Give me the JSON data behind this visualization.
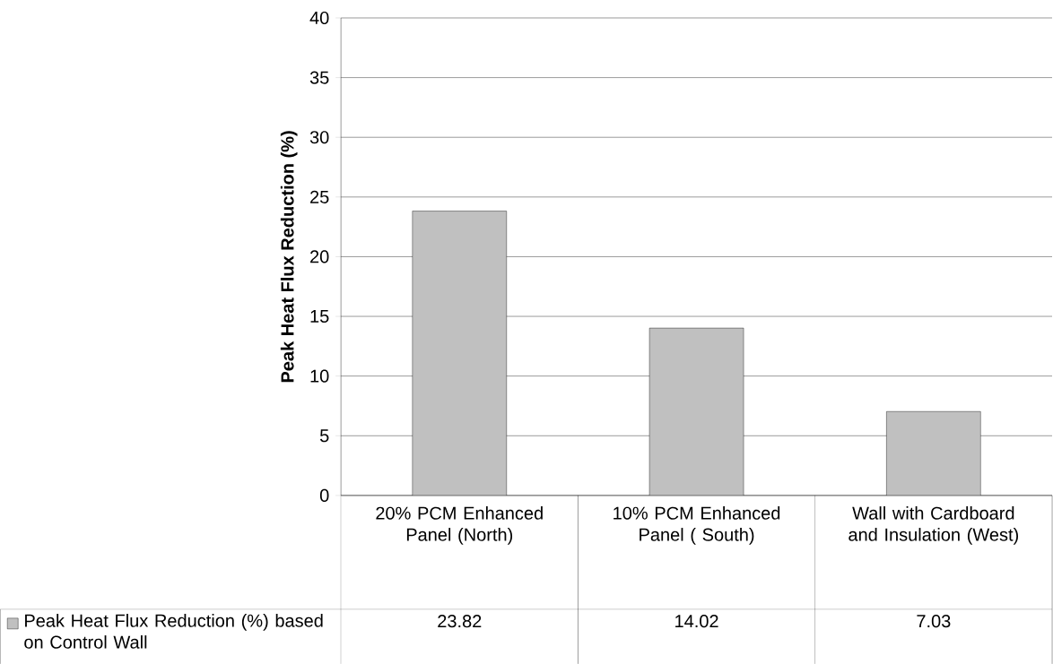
{
  "chart_data": {
    "type": "bar",
    "ylabel": "Peak Heat Flux Reduction (%)",
    "categories": [
      "20% PCM Enhanced Panel (North)",
      "10% PCM Enhanced Panel ( South)",
      "Wall with Cardboard and Insulation (West)"
    ],
    "series": [
      {
        "name": "Peak Heat Flux Reduction (%) based on Control Wall",
        "color": "#c0c0c0",
        "values": [
          23.82,
          14.02,
          7.03
        ]
      }
    ],
    "ylim": [
      0,
      40
    ],
    "yticks": [
      0,
      5,
      10,
      15,
      20,
      25,
      30,
      35,
      40
    ],
    "grid": "y",
    "legend": "bottom",
    "data_labels": true
  }
}
